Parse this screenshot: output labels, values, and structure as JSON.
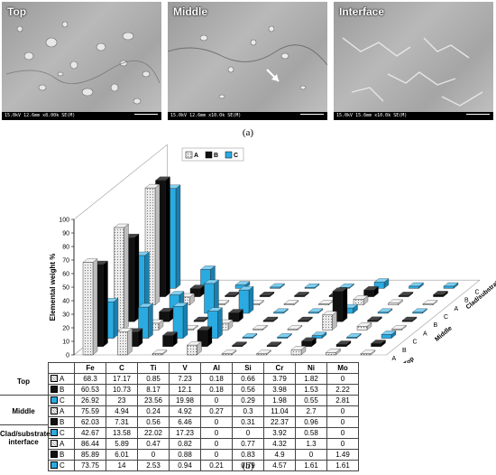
{
  "figure": {
    "panel_a": {
      "caption": "(a)",
      "images": [
        {
          "label": "Top",
          "databar": "15.0kV 12.6mm x8.00k SE(M)",
          "scale": "5.00 um"
        },
        {
          "label": "Middle",
          "databar": "15.0kV 12.6mm x10.0k SE(M)",
          "scale": "5.00 um"
        },
        {
          "label": "Interface",
          "databar": "15.0kV 15.6mm x10.0k SE(M)",
          "scale": "5.00 um"
        }
      ]
    },
    "panel_b": {
      "caption": "(b)",
      "legend": [
        "A",
        "B",
        "C"
      ],
      "ylabel": "Elemental weight %",
      "yticks": [
        "0",
        "10",
        "20",
        "30",
        "40",
        "50",
        "60",
        "70",
        "80",
        "90",
        "100"
      ],
      "depth_groups": [
        "Top",
        "Middle",
        "Clad/substrate interface"
      ],
      "depth_letters": [
        "A",
        "B",
        "C",
        "A",
        "B",
        "C",
        "A",
        "B",
        "C"
      ],
      "table_groups": [
        "Top",
        "Middle",
        "Clad/substrate interface"
      ],
      "row_letters": [
        "A",
        "B",
        "C"
      ]
    }
  },
  "chart_data": {
    "type": "bar",
    "title": "",
    "xlabel": "",
    "ylabel": "Elemental weight %",
    "ylim": [
      0,
      100
    ],
    "categories": [
      "Fe",
      "C",
      "Ti",
      "V",
      "Al",
      "Si",
      "Cr",
      "Ni",
      "Mo"
    ],
    "series": [
      {
        "name": "Top A",
        "values": [
          68.3,
          17.17,
          0.85,
          7.23,
          0.18,
          0.66,
          3.79,
          1.82,
          0
        ]
      },
      {
        "name": "Top B",
        "values": [
          60.53,
          10.73,
          8.17,
          12.1,
          0.18,
          0.56,
          3.98,
          1.53,
          2.22
        ]
      },
      {
        "name": "Top C",
        "values": [
          26.92,
          23,
          23.56,
          19.98,
          0,
          0.29,
          1.98,
          0.55,
          2.81
        ]
      },
      {
        "name": "Middle A",
        "values": [
          75.59,
          4.94,
          0.24,
          4.92,
          0.27,
          0.3,
          11.04,
          2.7,
          0
        ]
      },
      {
        "name": "Middle B",
        "values": [
          62.03,
          7.31,
          0.56,
          6.46,
          0,
          0.31,
          22.37,
          0.96,
          0
        ]
      },
      {
        "name": "Middle C",
        "values": [
          42.67,
          13.58,
          22.02,
          17.23,
          0,
          0,
          3.92,
          0.58,
          0
        ]
      },
      {
        "name": "Clad/substrate interface A",
        "values": [
          86.44,
          5.89,
          0.47,
          0.82,
          0,
          0.77,
          4.32,
          1.3,
          0
        ]
      },
      {
        "name": "Clad/substrate interface B",
        "values": [
          85.89,
          6.01,
          0,
          0.88,
          0,
          0.83,
          4.9,
          0,
          1.49
        ]
      },
      {
        "name": "Clad/substrate interface C",
        "values": [
          73.75,
          14,
          2.53,
          0.94,
          0.21,
          0.79,
          4.57,
          1.61,
          1.61
        ]
      }
    ],
    "table_text": [
      [
        "68.3",
        "17.17",
        "0.85",
        "7.23",
        "0.18",
        "0.66",
        "3.79",
        "1.82",
        "0"
      ],
      [
        "60.53",
        "10.73",
        "8.17",
        "12.1",
        "0.18",
        "0.56",
        "3.98",
        "1.53",
        "2.22"
      ],
      [
        "26.92",
        "23",
        "23.56",
        "19.98",
        "0",
        "0.29",
        "1.98",
        "0.55",
        "2.81"
      ],
      [
        "75.59",
        "4.94",
        "0.24",
        "4.92",
        "0.27",
        "0.3",
        "11.04",
        "2.7",
        "0"
      ],
      [
        "62.03",
        "7.31",
        "0.56",
        "6.46",
        "0",
        "0.31",
        "22.37",
        "0.96",
        "0"
      ],
      [
        "42.67",
        "13.58",
        "22.02",
        "17.23",
        "0",
        "0",
        "3.92",
        "0.58",
        "0"
      ],
      [
        "86.44",
        "5.89",
        "0.47",
        "0.82",
        "0",
        "0.77",
        "4.32",
        "1.3",
        "0"
      ],
      [
        "85.89",
        "6.01",
        "0",
        "0.88",
        "0",
        "0.83",
        "4.9",
        "0",
        "1.49"
      ],
      [
        "73.75",
        "14",
        "2.53",
        "0.94",
        "0.21",
        "0.79",
        "4.57",
        "1.61",
        "1.61"
      ]
    ],
    "colors": {
      "A": "#d9d9d9",
      "B": "#111111",
      "C": "#29abe2"
    },
    "legend_position": "top"
  }
}
